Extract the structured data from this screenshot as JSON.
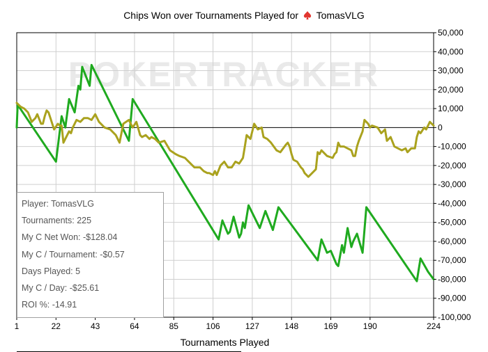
{
  "title": {
    "prefix": "Chips Won over Tournaments Played for",
    "player": "TomasVLG"
  },
  "watermark": "POKERTRACKER",
  "stats": [
    "Player: TomasVLG",
    "Tournaments: 225",
    "My C Net Won: -$128.04",
    "My C / Tournament: -$0.57",
    "Days Played: 5",
    "My C / Day: -$25.61",
    "ROI %: -14.91"
  ],
  "colors": {
    "green_series": "#1faa1f",
    "olive_series": "#aaa21e",
    "grid": "#cfcfcf",
    "spade_icon": "#e2362f"
  },
  "chart_data": {
    "type": "line",
    "title": "Chips Won over Tournaments Played for TomasVLG",
    "xlabel": "Tournaments Played",
    "ylabel": "",
    "xlim": [
      1,
      224
    ],
    "ylim": [
      -100000,
      50000
    ],
    "x_ticks": [
      1,
      22,
      43,
      64,
      85,
      106,
      127,
      148,
      169,
      190,
      224
    ],
    "y_ticks": [
      50000,
      40000,
      30000,
      20000,
      10000,
      0,
      -10000,
      -20000,
      -30000,
      -40000,
      -50000,
      -60000,
      -70000,
      -80000,
      -90000,
      -100000
    ],
    "y_tick_labels": [
      "50,000",
      "40,000",
      "30,000",
      "20,000",
      "10,000",
      "0",
      "-10,000",
      "-20,000",
      "-30,000",
      "-40,000",
      "-50,000",
      "-60,000",
      "-70,000",
      "-80,000",
      "-90,000",
      "-100,000"
    ],
    "y_axis_position": "right",
    "grid": true,
    "zero_line": true,
    "series": [
      {
        "color": "#1faa1f",
        "points": [
          [
            1,
            0
          ],
          [
            1.5,
            12000
          ],
          [
            22,
            -18000
          ],
          [
            25,
            6000
          ],
          [
            27,
            0
          ],
          [
            29,
            15000
          ],
          [
            32,
            8000
          ],
          [
            34,
            22000
          ],
          [
            35,
            20000
          ],
          [
            36,
            32000
          ],
          [
            40,
            22000
          ],
          [
            41,
            33000
          ],
          [
            61,
            -7000
          ],
          [
            63,
            15000
          ],
          [
            109,
            -59000
          ],
          [
            111,
            -49000
          ],
          [
            114,
            -56000
          ],
          [
            115,
            -55000
          ],
          [
            117,
            -47000
          ],
          [
            120,
            -58000
          ],
          [
            121,
            -56000
          ],
          [
            122,
            -50000
          ],
          [
            123,
            -53000
          ],
          [
            125,
            -41000
          ],
          [
            131,
            -53000
          ],
          [
            134,
            -44000
          ],
          [
            138,
            -54000
          ],
          [
            141,
            -42000
          ],
          [
            162,
            -70000
          ],
          [
            164,
            -59000
          ],
          [
            167,
            -66000
          ],
          [
            169,
            -65000
          ],
          [
            172,
            -72000
          ],
          [
            173,
            -73000
          ],
          [
            175,
            -62000
          ],
          [
            176,
            -66000
          ],
          [
            178,
            -53000
          ],
          [
            180,
            -63000
          ],
          [
            181,
            -60000
          ],
          [
            183,
            -56000
          ],
          [
            186,
            -66000
          ],
          [
            188,
            -42000
          ],
          [
            215,
            -81000
          ],
          [
            217,
            -69000
          ],
          [
            221,
            -76000
          ],
          [
            224,
            -80000
          ]
        ]
      },
      {
        "color": "#aaa21e",
        "points": [
          [
            1,
            13000
          ],
          [
            3,
            11000
          ],
          [
            5,
            10000
          ],
          [
            7,
            8000
          ],
          [
            9,
            3000
          ],
          [
            11,
            5000
          ],
          [
            12,
            7000
          ],
          [
            14,
            2000
          ],
          [
            15,
            2000
          ],
          [
            16,
            6000
          ],
          [
            17,
            9000
          ],
          [
            18,
            8000
          ],
          [
            19,
            5000
          ],
          [
            21,
            -1000
          ],
          [
            23,
            2000
          ],
          [
            24,
            1000
          ],
          [
            25,
            1000
          ],
          [
            26,
            -8000
          ],
          [
            28,
            -4000
          ],
          [
            29,
            -2000
          ],
          [
            30,
            -3000
          ],
          [
            31,
            0
          ],
          [
            32,
            2000
          ],
          [
            33,
            4000
          ],
          [
            35,
            3000
          ],
          [
            37,
            5000
          ],
          [
            39,
            5000
          ],
          [
            41,
            4000
          ],
          [
            43,
            7000
          ],
          [
            45,
            3000
          ],
          [
            48,
            0
          ],
          [
            51,
            -1000
          ],
          [
            54,
            -4000
          ],
          [
            56,
            -8000
          ],
          [
            58,
            2000
          ],
          [
            61,
            4000
          ],
          [
            63,
            0
          ],
          [
            65,
            3000
          ],
          [
            67,
            -4000
          ],
          [
            68,
            -5000
          ],
          [
            70,
            -4000
          ],
          [
            72,
            -6000
          ],
          [
            73,
            -5000
          ],
          [
            75,
            -6000
          ],
          [
            77,
            -8000
          ],
          [
            80,
            -7000
          ],
          [
            83,
            -12000
          ],
          [
            86,
            -14000
          ],
          [
            88,
            -15000
          ],
          [
            91,
            -16000
          ],
          [
            93,
            -18000
          ],
          [
            96,
            -21000
          ],
          [
            99,
            -21000
          ],
          [
            101,
            -23000
          ],
          [
            103,
            -24000
          ],
          [
            104,
            -24000
          ],
          [
            106,
            -25000
          ],
          [
            107,
            -23000
          ],
          [
            108,
            -25000
          ],
          [
            110,
            -20000
          ],
          [
            112,
            -18000
          ],
          [
            114,
            -21000
          ],
          [
            116,
            -21000
          ],
          [
            118,
            -18000
          ],
          [
            120,
            -19000
          ],
          [
            122,
            -16000
          ],
          [
            123,
            -10000
          ],
          [
            124,
            -4000
          ],
          [
            126,
            -6000
          ],
          [
            128,
            2000
          ],
          [
            130,
            -1000
          ],
          [
            132,
            0
          ],
          [
            133,
            -5000
          ],
          [
            135,
            -6000
          ],
          [
            137,
            -8000
          ],
          [
            140,
            -12000
          ],
          [
            142,
            -13000
          ],
          [
            145,
            -9000
          ],
          [
            146,
            -8000
          ],
          [
            147,
            -10000
          ],
          [
            148,
            -14000
          ],
          [
            149,
            -17000
          ],
          [
            151,
            -18000
          ],
          [
            153,
            -21000
          ],
          [
            154,
            -22000
          ],
          [
            155,
            -24000
          ],
          [
            157,
            -26000
          ],
          [
            159,
            -24000
          ],
          [
            161,
            -22000
          ],
          [
            162,
            -13000
          ],
          [
            163,
            -14000
          ],
          [
            164,
            -12000
          ],
          [
            165,
            -13000
          ],
          [
            167,
            -15000
          ],
          [
            170,
            -16000
          ],
          [
            171,
            -14000
          ],
          [
            172,
            -13000
          ],
          [
            173,
            -8000
          ],
          [
            174,
            -10000
          ],
          [
            176,
            -10000
          ],
          [
            178,
            -11000
          ],
          [
            180,
            -12000
          ],
          [
            181,
            -15000
          ],
          [
            182,
            -15000
          ],
          [
            183,
            -10000
          ],
          [
            184,
            -7000
          ],
          [
            186,
            -2000
          ],
          [
            187,
            4000
          ],
          [
            189,
            2000
          ],
          [
            190,
            0
          ],
          [
            191,
            1000
          ],
          [
            194,
            0
          ],
          [
            196,
            -3000
          ],
          [
            198,
            -1000
          ],
          [
            199,
            -7000
          ],
          [
            201,
            -5000
          ],
          [
            203,
            -10000
          ],
          [
            205,
            -11000
          ],
          [
            207,
            -12000
          ],
          [
            209,
            -11000
          ],
          [
            210,
            -13000
          ],
          [
            212,
            -11000
          ],
          [
            214,
            -11000
          ],
          [
            215,
            -5000
          ],
          [
            216,
            -2000
          ],
          [
            217,
            -3000
          ],
          [
            219,
            0
          ],
          [
            220,
            -1000
          ],
          [
            222,
            3000
          ],
          [
            223,
            2000
          ],
          [
            224,
            1000
          ]
        ]
      }
    ]
  }
}
